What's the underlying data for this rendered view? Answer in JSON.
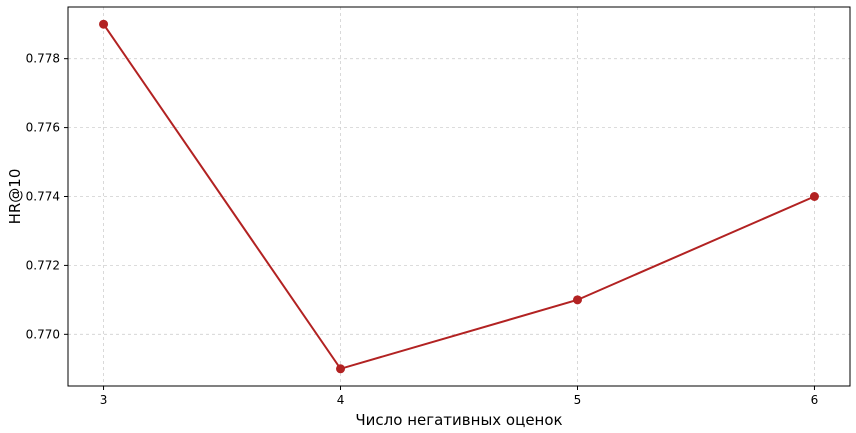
{
  "chart_data": {
    "type": "line",
    "xlabel": "Число негативных оценок",
    "ylabel": "HR@10",
    "x": [
      3,
      4,
      5,
      6
    ],
    "series": [
      {
        "values": [
          0.779,
          0.769,
          0.771,
          0.774
        ],
        "color": "#b22222"
      }
    ],
    "xticks": [
      "3",
      "4",
      "5",
      "6"
    ],
    "yticks": [
      0.77,
      0.772,
      0.774,
      0.776,
      0.778
    ],
    "ytick_labels": [
      "0.770",
      "0.772",
      "0.774",
      "0.776",
      "0.778"
    ],
    "xlim": [
      2.85,
      6.15
    ],
    "ylim": [
      0.7685,
      0.7795
    ],
    "grid": true,
    "marker": "circle"
  }
}
